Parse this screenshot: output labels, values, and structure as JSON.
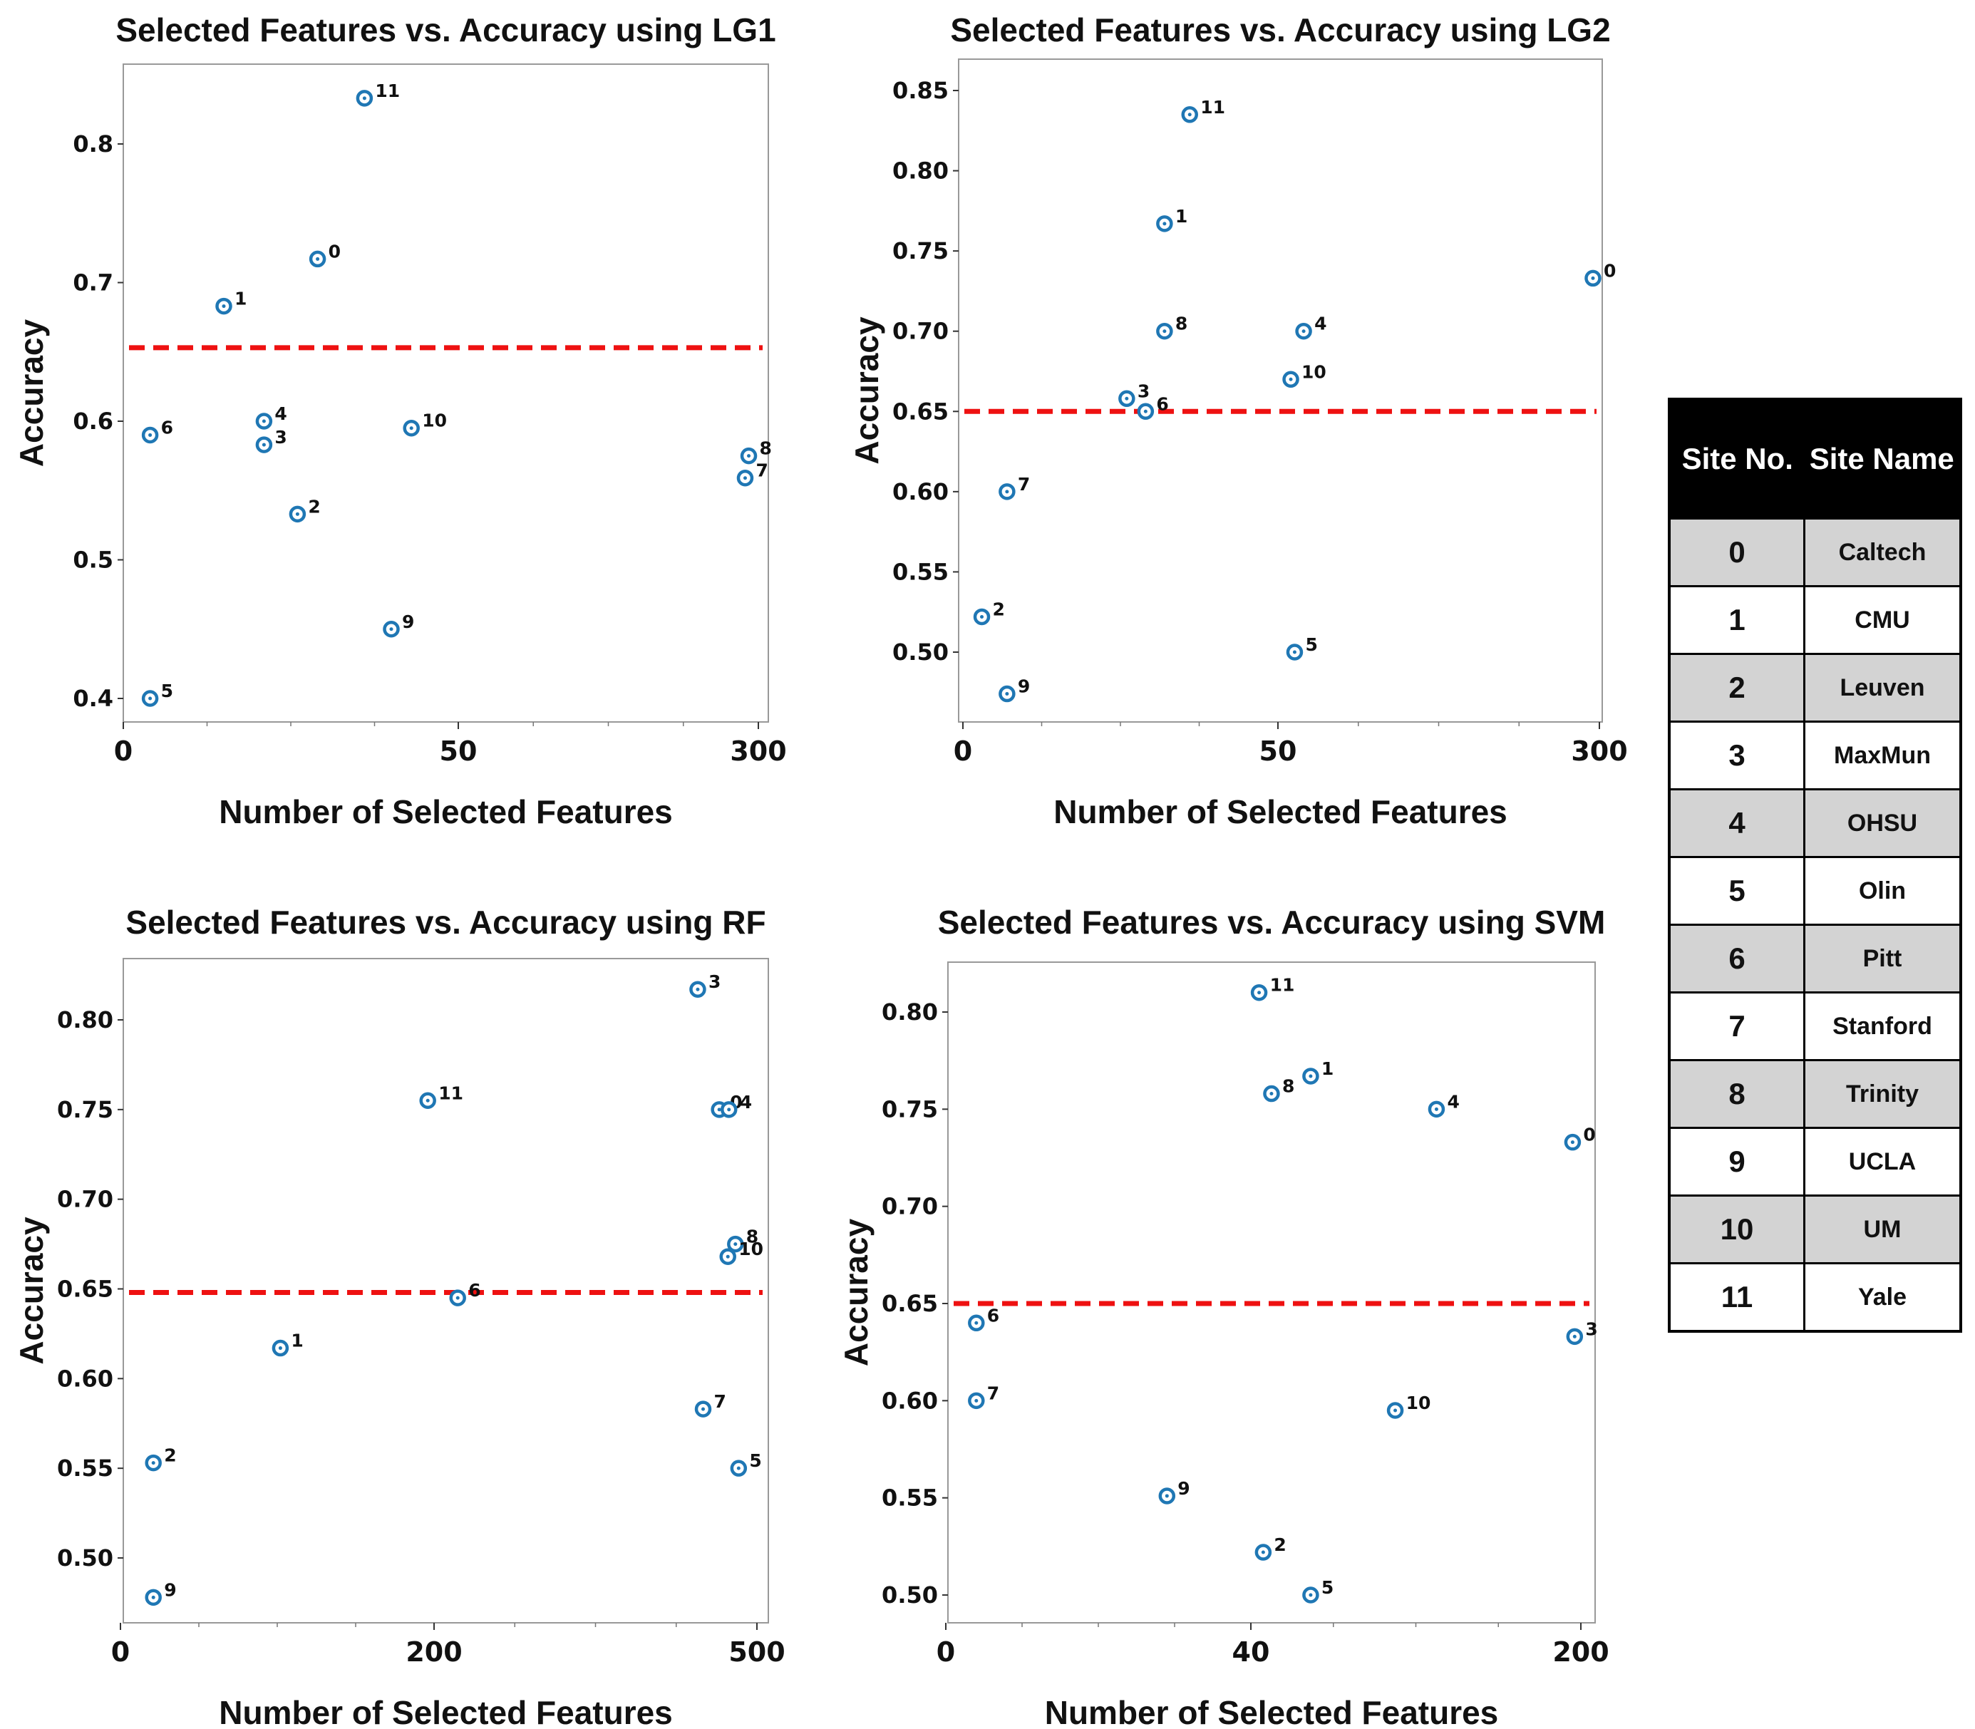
{
  "colors": {
    "marker": "#1f77b4",
    "threshold": "#ee1111",
    "text": "#111111"
  },
  "chart_data": [
    {
      "type": "scatter",
      "title": "Selected Features vs. Accuracy using  LG1",
      "xlabel": "Number of Selected Features",
      "ylabel": "Accuracy",
      "xticks": [
        "0",
        "50",
        "300"
      ],
      "yticks": [
        0.4,
        0.5,
        0.6,
        0.7,
        0.8
      ],
      "ytick_labels": [
        "0.4",
        "0.5",
        "0.6",
        "0.7",
        "0.8"
      ],
      "ylim": [
        0.39,
        0.865
      ],
      "threshold": 0.653,
      "points": [
        {
          "label": "0",
          "x": 29,
          "y": 0.717
        },
        {
          "label": "1",
          "x": 15,
          "y": 0.683
        },
        {
          "label": "2",
          "x": 26,
          "y": 0.533
        },
        {
          "label": "3",
          "x": 21,
          "y": 0.583
        },
        {
          "label": "4",
          "x": 21,
          "y": 0.6
        },
        {
          "label": "5",
          "x": 4,
          "y": 0.4
        },
        {
          "label": "6",
          "x": 4,
          "y": 0.59
        },
        {
          "label": "7",
          "x": 289,
          "y": 0.559
        },
        {
          "label": "8",
          "x": 292,
          "y": 0.575
        },
        {
          "label": "9",
          "x": 40,
          "y": 0.45
        },
        {
          "label": "10",
          "x": 43,
          "y": 0.595
        },
        {
          "label": "11",
          "x": 36,
          "y": 0.833
        }
      ]
    },
    {
      "type": "scatter",
      "title": "Selected Features vs. Accuracy using  LG2",
      "xlabel": "Number of Selected Features",
      "ylabel": "Accuracy",
      "xticks": [
        "0",
        "50",
        "300"
      ],
      "yticks": [
        0.5,
        0.55,
        0.6,
        0.65,
        0.7,
        0.75,
        0.8,
        0.85
      ],
      "ytick_labels": [
        "0.50",
        "0.55",
        "0.60",
        "0.65",
        "0.70",
        "0.75",
        "0.80",
        "0.85"
      ],
      "ylim": [
        0.455,
        0.855
      ],
      "threshold": 0.65,
      "points": [
        {
          "label": "0",
          "x": 295,
          "y": 0.733
        },
        {
          "label": "1",
          "x": 32,
          "y": 0.767
        },
        {
          "label": "2",
          "x": 3,
          "y": 0.522
        },
        {
          "label": "3",
          "x": 26,
          "y": 0.658
        },
        {
          "label": "4",
          "x": 70,
          "y": 0.7
        },
        {
          "label": "5",
          "x": 63,
          "y": 0.5
        },
        {
          "label": "6",
          "x": 29,
          "y": 0.65
        },
        {
          "label": "7",
          "x": 7,
          "y": 0.6
        },
        {
          "label": "8",
          "x": 32,
          "y": 0.7
        },
        {
          "label": "9",
          "x": 7,
          "y": 0.474
        },
        {
          "label": "10",
          "x": 60,
          "y": 0.67
        },
        {
          "label": "11",
          "x": 36,
          "y": 0.835
        }
      ]
    },
    {
      "type": "scatter",
      "title": "Selected Features vs. Accuracy using  RF",
      "xlabel": "Number of Selected Features",
      "ylabel": "Accuracy",
      "xticks": [
        "0",
        "200",
        "500"
      ],
      "yticks": [
        0.5,
        0.55,
        0.6,
        0.65,
        0.7,
        0.75,
        0.8
      ],
      "ytick_labels": [
        "0.50",
        "0.55",
        "0.60",
        "0.65",
        "0.70",
        "0.75",
        "0.80"
      ],
      "ylim": [
        0.46,
        0.832
      ],
      "threshold": 0.648,
      "points": [
        {
          "label": "0",
          "x": 465,
          "y": 0.75
        },
        {
          "label": "1",
          "x": 102,
          "y": 0.617
        },
        {
          "label": "2",
          "x": 21,
          "y": 0.553
        },
        {
          "label": "3",
          "x": 445,
          "y": 0.817
        },
        {
          "label": "4",
          "x": 474,
          "y": 0.75
        },
        {
          "label": "5",
          "x": 483,
          "y": 0.55
        },
        {
          "label": "6",
          "x": 222,
          "y": 0.645
        },
        {
          "label": "7",
          "x": 450,
          "y": 0.583
        },
        {
          "label": "8",
          "x": 480,
          "y": 0.675
        },
        {
          "label": "9",
          "x": 21,
          "y": 0.478
        },
        {
          "label": "10",
          "x": 473,
          "y": 0.668
        },
        {
          "label": "11",
          "x": 196,
          "y": 0.755
        }
      ]
    },
    {
      "type": "scatter",
      "title": "Selected Features vs. Accuracy using  SVM",
      "xlabel": "Number of Selected Features",
      "ylabel": "Accuracy",
      "xticks": [
        "0",
        "40",
        "200"
      ],
      "yticks": [
        0.5,
        0.55,
        0.6,
        0.65,
        0.7,
        0.75,
        0.8
      ],
      "ytick_labels": [
        "0.50",
        "0.55",
        "0.60",
        "0.65",
        "0.70",
        "0.75",
        "0.80"
      ],
      "ylim": [
        0.485,
        0.825
      ],
      "threshold": 0.65,
      "points": [
        {
          "label": "0",
          "x": 196,
          "y": 0.733
        },
        {
          "label": "1",
          "x": 69,
          "y": 0.767
        },
        {
          "label": "2",
          "x": 46,
          "y": 0.522
        },
        {
          "label": "3",
          "x": 197,
          "y": 0.633
        },
        {
          "label": "4",
          "x": 130,
          "y": 0.75
        },
        {
          "label": "5",
          "x": 69,
          "y": 0.5
        },
        {
          "label": "6",
          "x": 4,
          "y": 0.64
        },
        {
          "label": "7",
          "x": 4,
          "y": 0.6
        },
        {
          "label": "8",
          "x": 50,
          "y": 0.758
        },
        {
          "label": "9",
          "x": 29,
          "y": 0.551
        },
        {
          "label": "10",
          "x": 110,
          "y": 0.595
        },
        {
          "label": "11",
          "x": 44,
          "y": 0.81
        }
      ]
    }
  ],
  "site_table": {
    "headers": [
      "Site No.",
      "Site Name"
    ],
    "rows": [
      {
        "no": "0",
        "name": "Caltech"
      },
      {
        "no": "1",
        "name": "CMU"
      },
      {
        "no": "2",
        "name": "Leuven"
      },
      {
        "no": "3",
        "name": "MaxMun"
      },
      {
        "no": "4",
        "name": "OHSU"
      },
      {
        "no": "5",
        "name": "Olin"
      },
      {
        "no": "6",
        "name": "Pitt"
      },
      {
        "no": "7",
        "name": "Stanford"
      },
      {
        "no": "8",
        "name": "Trinity"
      },
      {
        "no": "9",
        "name": "UCLA"
      },
      {
        "no": "10",
        "name": "UM"
      },
      {
        "no": "11",
        "name": "Yale"
      }
    ]
  }
}
